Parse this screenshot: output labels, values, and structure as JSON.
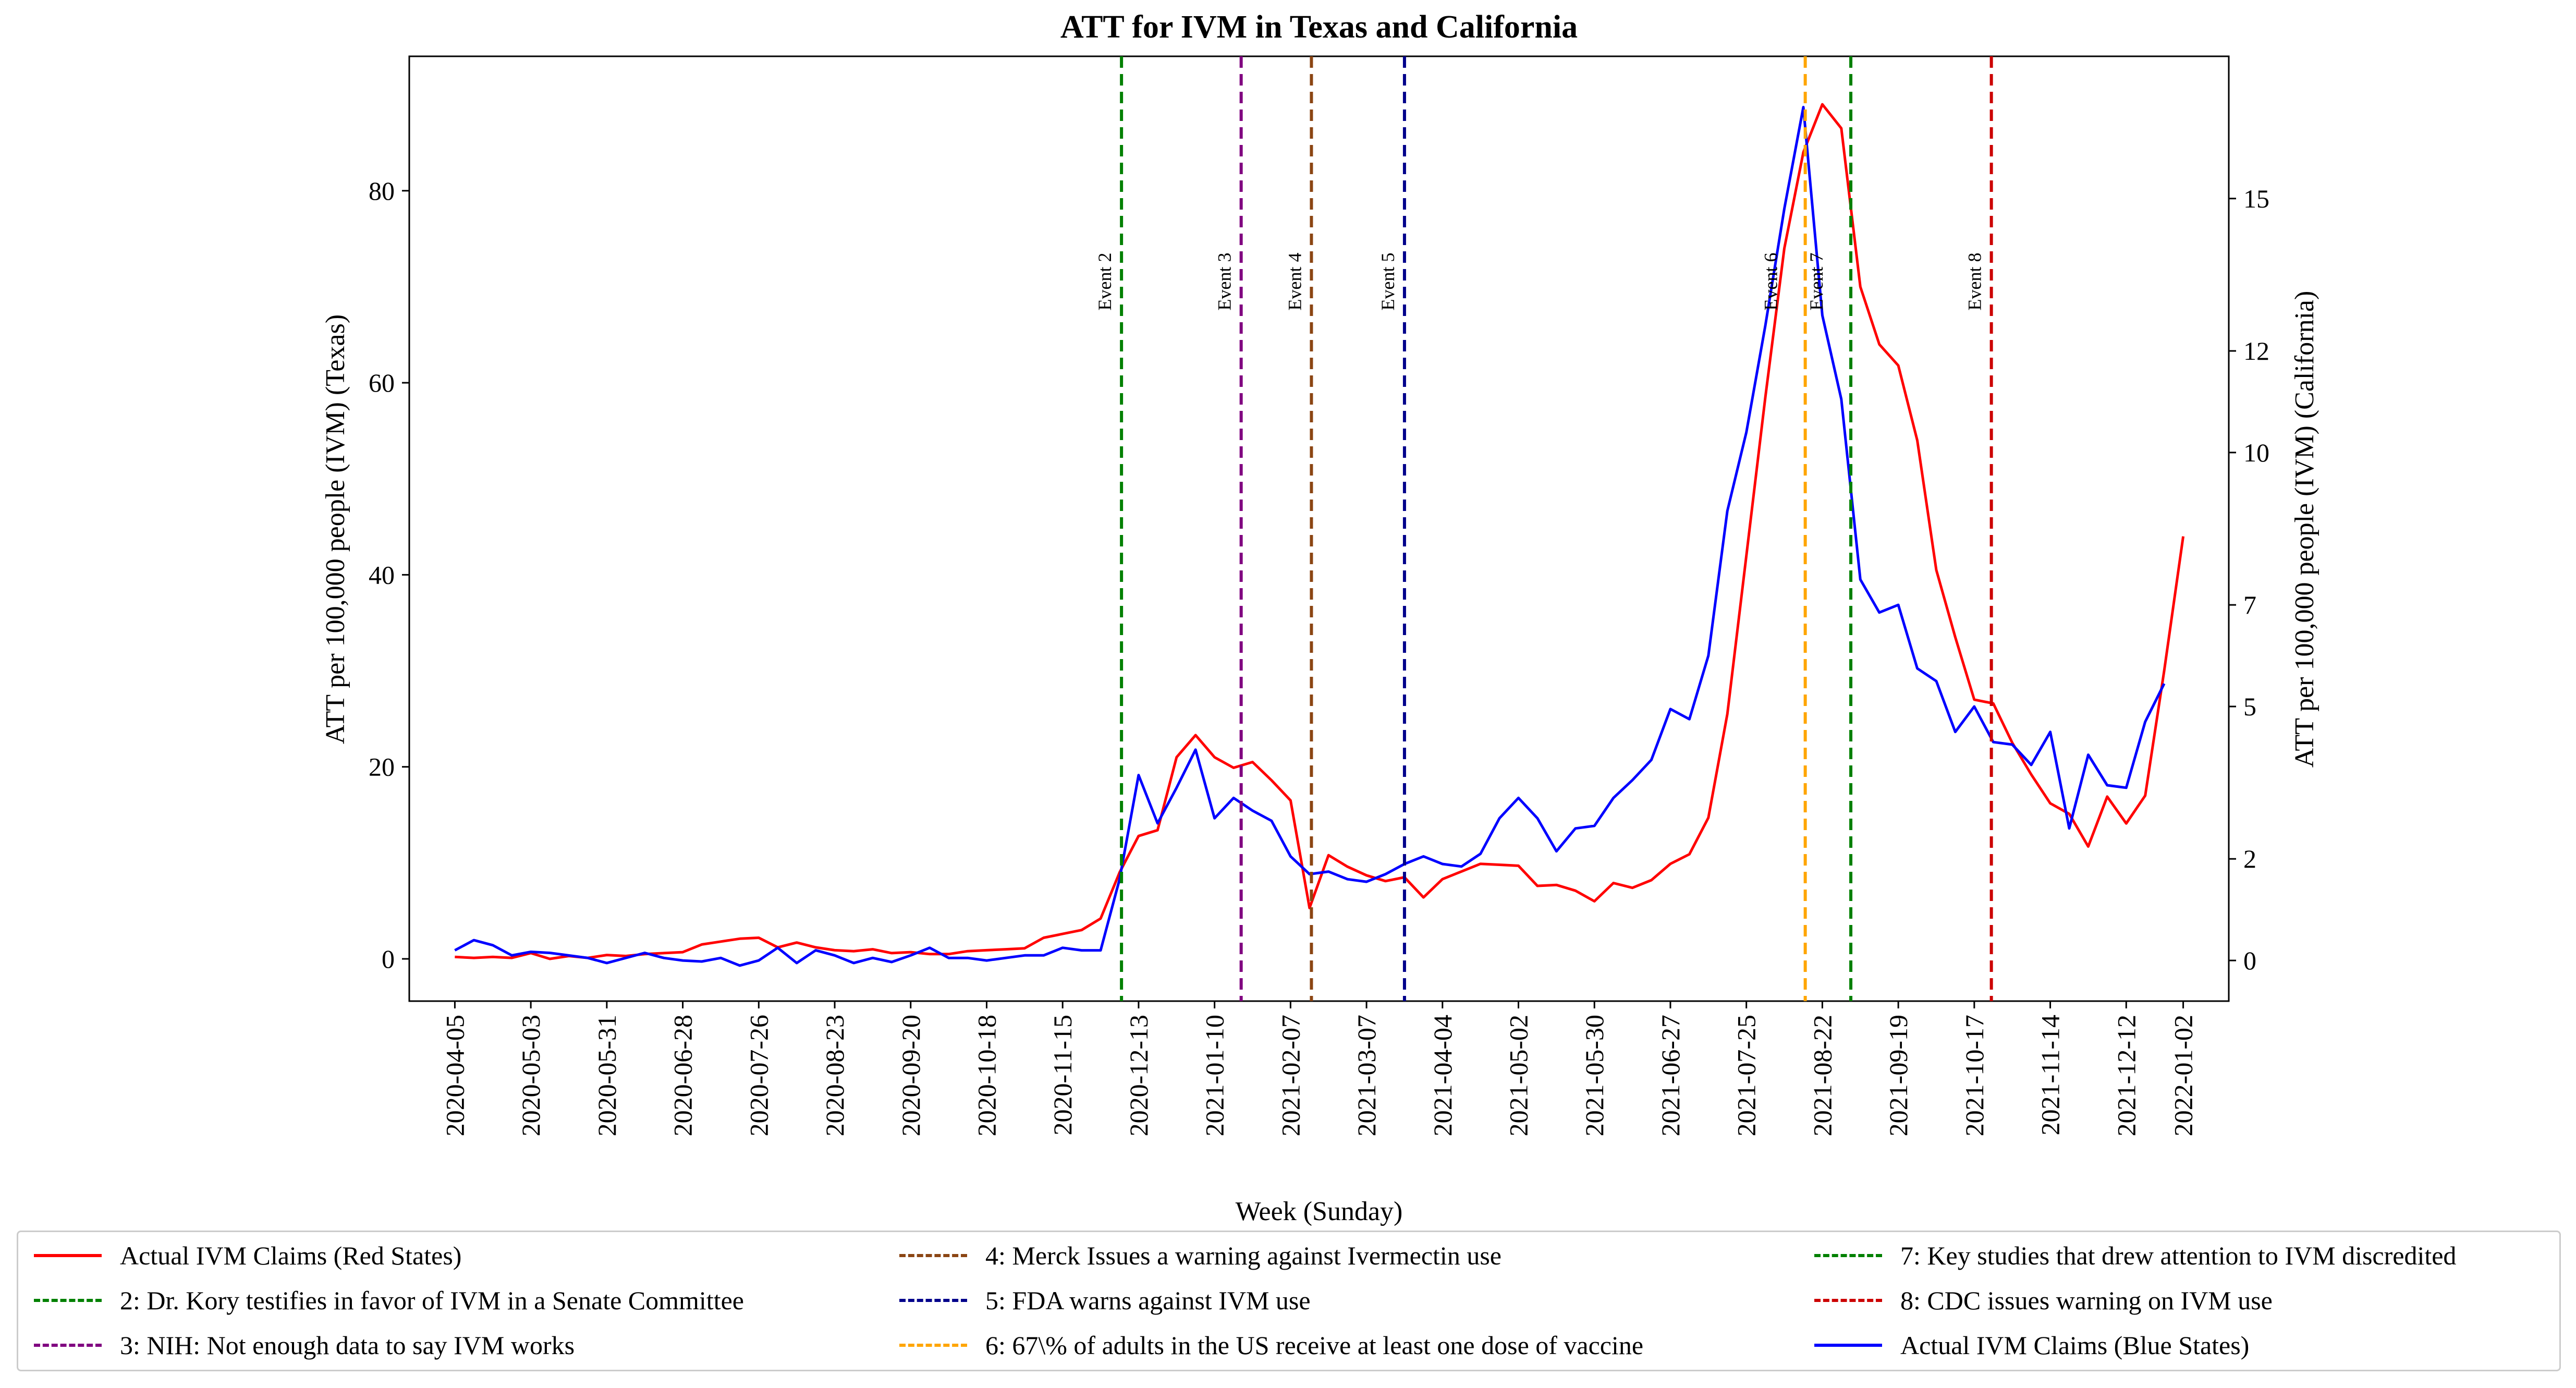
{
  "chart_data": {
    "type": "line",
    "title": "ATT for IVM in Texas and California",
    "xlabel": "Week (Sunday)",
    "ylabel_left": "ATT per 100,000 people (IVM) (Texas)",
    "ylabel_right": "ATT per 100,000 people (IVM) (California)",
    "x_tick_labels": [
      "2020-04-05",
      "2020-05-03",
      "2020-05-31",
      "2020-06-28",
      "2020-07-26",
      "2020-08-23",
      "2020-09-20",
      "2020-10-18",
      "2020-11-15",
      "2020-12-13",
      "2021-01-10",
      "2021-02-07",
      "2021-03-07",
      "2021-04-04",
      "2021-05-02",
      "2021-05-30",
      "2021-06-27",
      "2021-07-25",
      "2021-08-22",
      "2021-09-19",
      "2021-10-17",
      "2021-11-14",
      "2021-12-12",
      "2022-01-02"
    ],
    "y_left_ticks": [
      0,
      20,
      40,
      60,
      80
    ],
    "y_left_range": [
      -4.4,
      94
    ],
    "y_right_ticks": [
      0,
      2,
      5,
      7,
      10,
      12,
      15
    ],
    "y_right_range": [
      -0.8,
      17.8
    ],
    "x_range_weeks": [
      -2.4,
      93.4
    ],
    "grid": false,
    "legend_placement": "bottom (below the x axis)",
    "series": [
      {
        "name": "Actual IVM Claims (Red States)",
        "axis": "left",
        "color": "#ff0000",
        "values": [
          0.2,
          0.1,
          0.2,
          0.1,
          0.6,
          0.0,
          0.3,
          0.1,
          0.4,
          0.3,
          0.5,
          0.6,
          0.7,
          1.5,
          1.8,
          2.1,
          2.2,
          1.2,
          1.7,
          1.2,
          0.9,
          0.8,
          1.0,
          0.6,
          0.7,
          0.5,
          0.5,
          0.8,
          0.9,
          1.0,
          1.1,
          2.2,
          2.6,
          3.0,
          4.2,
          9.0,
          12.8,
          13.4,
          21.0,
          23.3,
          21.0,
          19.9,
          20.5,
          18.6,
          16.5,
          5.3,
          10.8,
          9.6,
          8.7,
          8.1,
          8.5,
          6.4,
          8.3,
          9.1,
          9.9,
          9.8,
          9.7,
          7.6,
          7.7,
          7.1,
          6.0,
          7.9,
          7.4,
          8.2,
          9.9,
          10.9,
          14.7,
          25.5,
          42.0,
          58.5,
          74.0,
          84.0,
          89.0,
          86.5,
          70.0,
          64.0,
          61.8,
          54.0,
          40.5,
          33.5,
          27.0,
          26.6,
          22.5,
          19.2,
          16.2,
          15.1,
          11.7,
          16.9,
          14.1,
          17.0,
          30.0,
          44.0
        ]
      },
      {
        "name": "Actual IVM Claims (Blue States)",
        "axis": "right",
        "color": "#0000ff",
        "values": [
          0.2,
          0.4,
          0.3,
          0.1,
          0.17,
          0.15,
          0.1,
          0.05,
          -0.05,
          0.05,
          0.15,
          0.05,
          0.0,
          -0.02,
          0.05,
          -0.1,
          0.0,
          0.25,
          -0.05,
          0.2,
          0.1,
          -0.05,
          0.05,
          -0.03,
          0.1,
          0.25,
          0.05,
          0.05,
          0.0,
          0.05,
          0.1,
          0.1,
          0.25,
          0.2,
          0.2,
          1.6,
          3.65,
          2.7,
          3.4,
          4.15,
          2.8,
          3.2,
          2.95,
          2.75,
          2.05,
          1.7,
          1.75,
          1.6,
          1.55,
          1.7,
          1.9,
          2.05,
          1.9,
          1.85,
          2.1,
          2.8,
          3.2,
          2.8,
          2.15,
          2.6,
          2.65,
          3.2,
          3.55,
          3.95,
          4.95,
          4.75,
          6.0,
          8.85,
          10.4,
          12.5,
          14.8,
          16.8,
          12.7,
          11.05,
          7.5,
          6.85,
          7.0,
          5.75,
          5.5,
          4.5,
          5.0,
          4.3,
          4.25,
          3.85,
          4.5,
          2.6,
          4.05,
          3.45,
          3.4,
          4.7,
          5.45
        ]
      }
    ],
    "events": [
      {
        "label": "Event 2",
        "legend": "2: Dr. Kory testifies in favor of IVM in a Senate Committee",
        "color": "#008000",
        "week": 35.1
      },
      {
        "label": "Event 3",
        "legend": "3: NIH: Not enough data to say IVM works",
        "color": "#800080",
        "week": 41.4
      },
      {
        "label": "Event 4",
        "legend": "4: Merck Issues a warning against Ivermectin use",
        "color": "#8b4513",
        "week": 45.1
      },
      {
        "label": "Event 5",
        "legend": "5: FDA warns against IVM use",
        "color": "#00008b",
        "week": 50.0
      },
      {
        "label": "Event 6",
        "legend": "6: 67\\% of adults in the US receive at least one dose of vaccine",
        "color": "#ffa500",
        "week": 71.1
      },
      {
        "label": "Event 7",
        "legend": "7: Key studies that drew attention to IVM discredited",
        "color": "#008000",
        "week": 73.5
      },
      {
        "label": "Event 8",
        "legend": "8: CDC issues warning on IVM use",
        "color": "#cc0000",
        "week": 80.9
      }
    ]
  },
  "legend_columns": [
    [
      {
        "label": "Actual IVM Claims (Red States)",
        "color": "#ff0000",
        "style": "solid"
      },
      {
        "label": "2: Dr. Kory testifies in favor of IVM in a Senate Committee",
        "color": "#008000",
        "style": "dashed"
      },
      {
        "label": "3: NIH: Not enough data to say IVM works",
        "color": "#800080",
        "style": "dashed"
      }
    ],
    [
      {
        "label": "4: Merck Issues a warning against Ivermectin use",
        "color": "#8b4513",
        "style": "dashed"
      },
      {
        "label": "5: FDA warns against IVM use",
        "color": "#00008b",
        "style": "dashed"
      },
      {
        "label": "6: 67\\% of adults in the US receive at least one dose of vaccine",
        "color": "#ffa500",
        "style": "dashed"
      }
    ],
    [
      {
        "label": "7: Key studies that drew attention to IVM discredited",
        "color": "#008000",
        "style": "dashed"
      },
      {
        "label": "8: CDC issues warning on IVM use",
        "color": "#cc0000",
        "style": "dashed"
      },
      {
        "label": "Actual IVM Claims (Blue States)",
        "color": "#0000ff",
        "style": "solid"
      }
    ]
  ]
}
